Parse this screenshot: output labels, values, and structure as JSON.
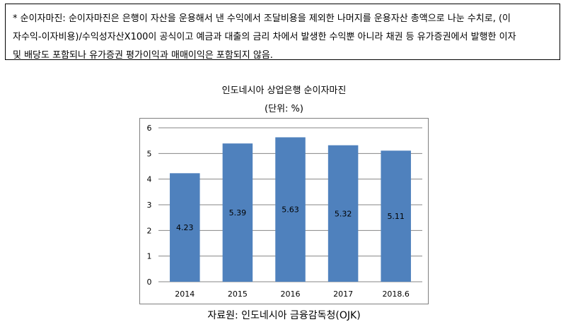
{
  "note": {
    "lines": [
      " * 순이자마진: 순이자마진은 은행이 자산을 운용해서 낸 수익에서 조달비용을 제외한 나머지를 운용자산 총액으로 나눈 수치로, (이",
      "자수익-이자비용)/수익성자산X100이 공식이고 예금과 대출의 금리 차에서 발생한 수익뿐 아니라 채권 등 유가증권에서 발행한 이자",
      "및 배당도 포함되나 유가증권 평가이익과 매매이익은 포함되지 않음."
    ]
  },
  "chart_data": {
    "type": "bar",
    "title": "인도네시아 상업은행 순이자마진",
    "subtitle": "(단위: %)",
    "categories": [
      "2014",
      "2015",
      "2016",
      "2017",
      "2018.6"
    ],
    "values": [
      4.23,
      5.39,
      5.63,
      5.32,
      5.11
    ],
    "value_labels": [
      "4.23",
      "5.39",
      "5.63",
      "5.32",
      "5.11"
    ],
    "ylim": [
      0,
      6
    ],
    "yticks": [
      "0",
      "1",
      "2",
      "3",
      "4",
      "5",
      "6"
    ],
    "grid": true,
    "legend": "none",
    "bar_color": "#4f81bd"
  },
  "source": "자료원: 인도네시아 금융감독청(OJK)"
}
